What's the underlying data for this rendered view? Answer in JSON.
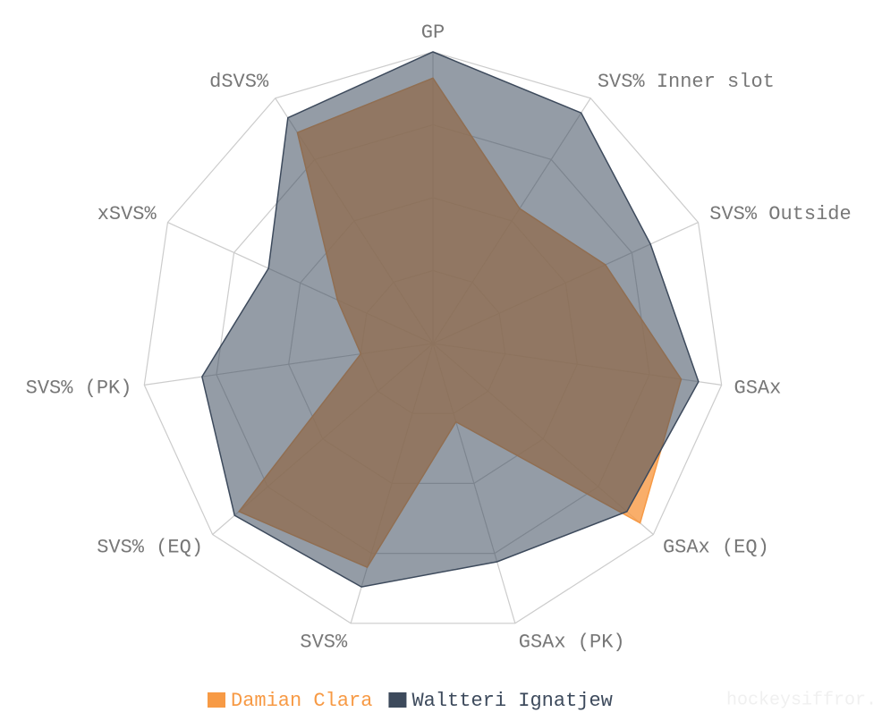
{
  "chart_data": {
    "type": "radar",
    "categories": [
      "GP",
      "SVS% Inner slot",
      "SVS% Outside",
      "GSAx",
      "GSAx (EQ)",
      "GSAx (PK)",
      "SVS%",
      "SVS% (EQ)",
      "SVS% (PK)",
      "xSVS%",
      "dSVS%"
    ],
    "series": [
      {
        "name": "Damian Clara",
        "color": "#f79a45",
        "values": [
          91,
          55,
          65,
          86,
          94,
          28,
          80,
          88,
          25,
          36,
          86
        ]
      },
      {
        "name": "Waltteri Ignatjew",
        "color": "#3d4a5c",
        "values": [
          100,
          94,
          82,
          92,
          88,
          78,
          87,
          90,
          80,
          62,
          92
        ]
      }
    ],
    "rlim": [
      0,
      100
    ],
    "rticks": [
      0,
      25,
      50,
      75,
      100
    ],
    "grid": true,
    "legend": "bottom",
    "watermark": "hockeysiffror."
  }
}
